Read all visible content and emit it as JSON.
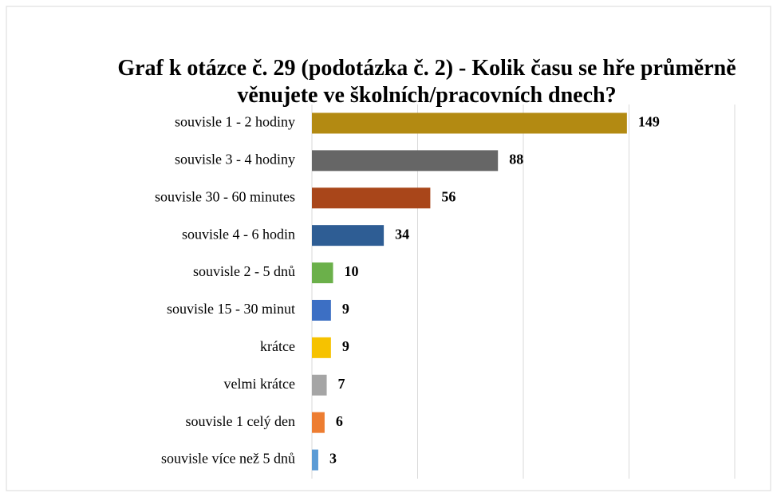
{
  "chart_data": {
    "type": "bar",
    "orientation": "horizontal",
    "title": "Graf k otázce č. 29 (podotázka č. 2) - Kolik času se hře průměrně věnujete ve školních/pracovních dnech?",
    "categories": [
      "souvisle 1 - 2 hodiny",
      "souvisle 3 - 4 hodiny",
      "souvisle 30 - 60 minutes",
      "souvisle 4 - 6 hodin",
      "souvisle 2 - 5 dnů",
      "souvisle 15 - 30 minut",
      "krátce",
      "velmi krátce",
      "souvisle 1 celý den",
      "souvisle více než 5 dnů"
    ],
    "values": [
      149,
      88,
      56,
      34,
      10,
      9,
      9,
      7,
      6,
      3
    ],
    "colors": [
      "#b38a12",
      "#666666",
      "#a9461a",
      "#2e5d94",
      "#6bb04a",
      "#3c6fc4",
      "#f6c200",
      "#a5a5a5",
      "#ed7d31",
      "#5b9bd5"
    ],
    "xlim": [
      0,
      200
    ],
    "xticks": [
      0,
      50,
      100,
      150,
      200
    ],
    "grid": true
  }
}
